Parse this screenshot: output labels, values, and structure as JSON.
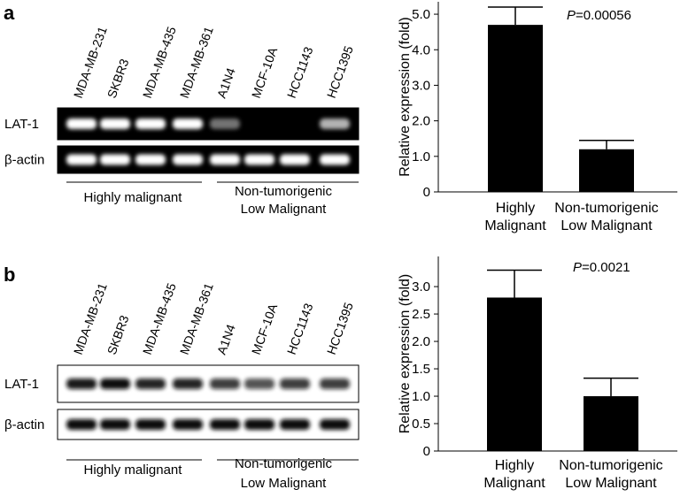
{
  "panels": [
    {
      "label": "a",
      "lanes": [
        "MDA-MB-231",
        "SKBR3",
        "MDA-MB-435",
        "MDA-MB-361",
        "A1N4",
        "MCF-10A",
        "HCC1143",
        "HCC1395"
      ],
      "rows": [
        "LAT-1",
        "β-actin"
      ],
      "groups": [
        [
          "Highly malignant"
        ],
        [
          "Non-tumorigenic",
          "Low Malignant"
        ]
      ]
    },
    {
      "label": "b",
      "lanes": [
        "MDA-MB-231",
        "SKBR3",
        "MDA-MB-435",
        "MDA-MB-361",
        "A1N4",
        "MCF-10A",
        "HCC1143",
        "HCC1395"
      ],
      "rows": [
        "LAT-1",
        "β-actin"
      ],
      "groups": [
        [
          "Highly malignant"
        ],
        [
          "Non-tumorigenic",
          "Low Malignant"
        ]
      ]
    }
  ],
  "chart_data": [
    {
      "type": "bar",
      "ylabel": "Relative expression (fold)",
      "p_symbol": "P",
      "p_value": "=0.00056",
      "categories": [
        [
          "Highly",
          "Malignant"
        ],
        [
          "Non-tumorigenic",
          "Low Malignant"
        ]
      ],
      "values": [
        4.7,
        1.2
      ],
      "errors": [
        0.5,
        0.25
      ],
      "color": "#000000",
      "ylim": [
        0,
        5.35
      ],
      "yticks": [
        0,
        {
          "value": 1,
          "label": "1.0"
        },
        {
          "value": 2,
          "label": "2.0"
        },
        {
          "value": 3,
          "label": "3.0"
        },
        {
          "value": 4,
          "label": "4.0"
        },
        {
          "value": 5,
          "label": "5.0"
        }
      ]
    },
    {
      "type": "bar",
      "ylabel": "Relative expression (fold)",
      "p_symbol": "P",
      "p_value": "=0.0021",
      "categories": [
        [
          "Highly",
          "Malignant"
        ],
        [
          "Non-tumorigenic",
          "Low Malignant"
        ]
      ],
      "values": [
        2.8,
        1.0
      ],
      "errors": [
        0.5,
        0.33
      ],
      "color": "#000000",
      "ylim": [
        0,
        3.55
      ],
      "yticks": [
        0,
        {
          "value": 0.5,
          "label": "0.5"
        },
        {
          "value": 1,
          "label": "1.0"
        },
        {
          "value": 1.5,
          "label": "1.5"
        },
        {
          "value": 2,
          "label": "2.0"
        },
        {
          "value": 2.5,
          "label": "2.5"
        },
        {
          "value": 3,
          "label": "3.0"
        }
      ]
    }
  ]
}
